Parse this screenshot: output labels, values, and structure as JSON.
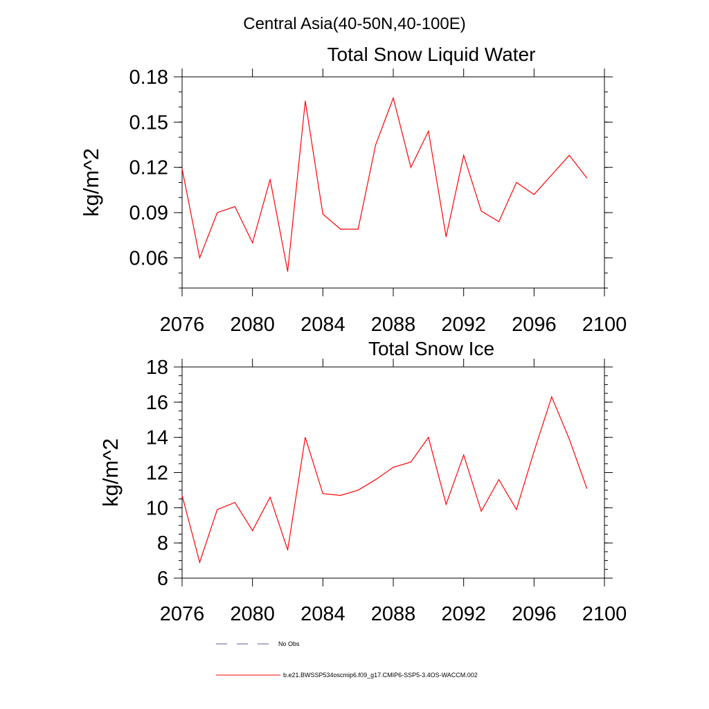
{
  "figure": {
    "title": "Central Asia(40-50N,40-100E)"
  },
  "chart_data": [
    {
      "type": "line",
      "title": "Total Snow Liquid Water",
      "xlabel": "",
      "ylabel": "kg/m^2",
      "xlim": [
        2076,
        2100
      ],
      "ylim": [
        0.04,
        0.18
      ],
      "x_ticks": [
        "2076",
        "2080",
        "2084",
        "2088",
        "2092",
        "2096",
        "2100"
      ],
      "y_ticks": [
        "0.06",
        "0.09",
        "0.12",
        "0.15",
        "0.18"
      ],
      "x_tick_values": [
        2076,
        2080,
        2084,
        2088,
        2092,
        2096,
        2100
      ],
      "y_tick_values": [
        0.06,
        0.09,
        0.12,
        0.15,
        0.18
      ],
      "grid": false,
      "series": [
        {
          "name": "b.e21.BWSSP534oscmip6.f09_g17.CMIP6-SSP5-3.4OS-WACCM.002",
          "color": "#ff0000",
          "x": [
            2076,
            2077,
            2078,
            2079,
            2080,
            2081,
            2082,
            2083,
            2084,
            2085,
            2086,
            2087,
            2088,
            2089,
            2090,
            2091,
            2092,
            2093,
            2094,
            2095,
            2096,
            2097,
            2098,
            2099
          ],
          "values": [
            0.119,
            0.06,
            0.09,
            0.094,
            0.07,
            0.112,
            0.051,
            0.164,
            0.089,
            0.079,
            0.079,
            0.135,
            0.166,
            0.12,
            0.144,
            0.074,
            0.128,
            0.091,
            0.084,
            0.11,
            0.102,
            0.115,
            0.128,
            0.113
          ]
        }
      ]
    },
    {
      "type": "line",
      "title": "Total Snow Ice",
      "xlabel": "",
      "ylabel": "kg/m^2",
      "xlim": [
        2076,
        2100
      ],
      "ylim": [
        6,
        18
      ],
      "x_ticks": [
        "2076",
        "2080",
        "2084",
        "2088",
        "2092",
        "2096",
        "2100"
      ],
      "y_ticks": [
        "6",
        "8",
        "10",
        "12",
        "14",
        "16",
        "18"
      ],
      "x_tick_values": [
        2076,
        2080,
        2084,
        2088,
        2092,
        2096,
        2100
      ],
      "y_tick_values": [
        6,
        8,
        10,
        12,
        14,
        16,
        18
      ],
      "grid": false,
      "series": [
        {
          "name": "b.e21.BWSSP534oscmip6.f09_g17.CMIP6-SSP5-3.4OS-WACCM.002",
          "color": "#ff0000",
          "x": [
            2076,
            2077,
            2078,
            2079,
            2080,
            2081,
            2082,
            2083,
            2084,
            2085,
            2086,
            2087,
            2088,
            2089,
            2090,
            2091,
            2092,
            2093,
            2094,
            2095,
            2096,
            2097,
            2098,
            2099
          ],
          "values": [
            10.7,
            6.9,
            9.9,
            10.3,
            8.7,
            10.6,
            7.6,
            14.0,
            10.8,
            10.7,
            11.0,
            11.6,
            12.3,
            12.6,
            14.0,
            10.2,
            13.0,
            9.8,
            11.6,
            9.9,
            13.2,
            16.3,
            13.9,
            11.1
          ]
        }
      ]
    }
  ],
  "legend": {
    "placement": "bottom",
    "entries": [
      {
        "label": "No Obs",
        "style": "dashed",
        "color": "#5a5aa0"
      },
      {
        "label": "b.e21.BWSSP534oscmip6.f09_g17.CMIP6-SSP5-3.4OS-WACCM.002",
        "style": "solid",
        "color": "#ff0000"
      }
    ]
  }
}
